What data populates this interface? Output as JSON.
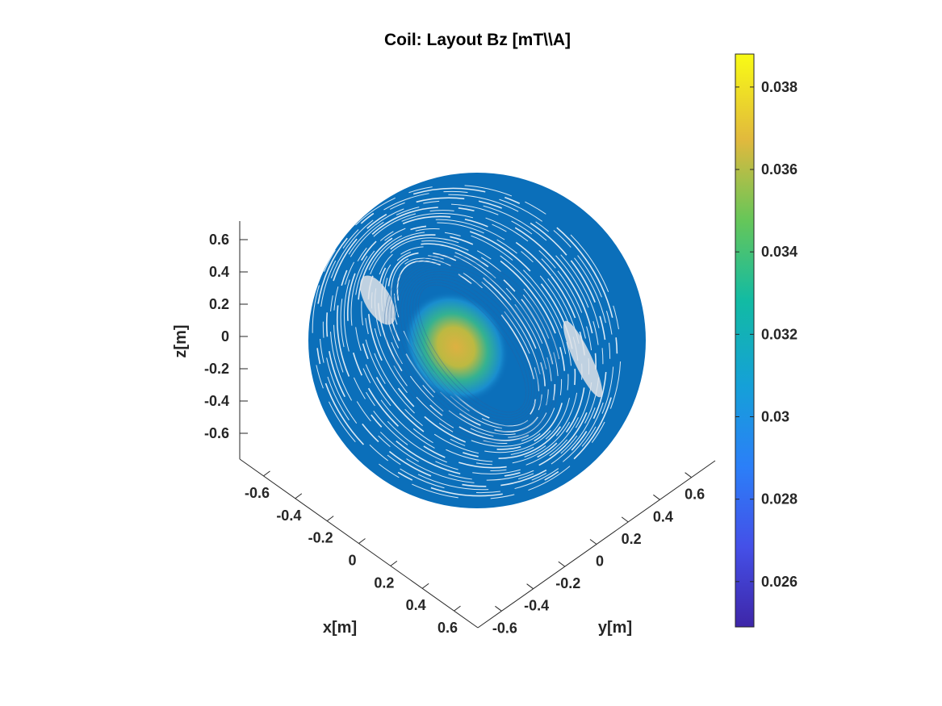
{
  "chart_data": {
    "type": "surface3d",
    "title": "Coil: Layout Bz [mT\\\\A]",
    "xlabel": "x[m]",
    "ylabel": "y[m]",
    "zlabel": "z[m]",
    "x_ticks": [
      "-0.6",
      "-0.4",
      "-0.2",
      "0",
      "0.2",
      "0.4",
      "0.6"
    ],
    "y_ticks": [
      "-0.6",
      "-0.4",
      "-0.2",
      "0",
      "0.2",
      "0.4",
      "0.6"
    ],
    "z_ticks": [
      "0.6",
      "0.4",
      "0.2",
      "0",
      "-0.2",
      "-0.4",
      "-0.6"
    ],
    "xlim": [
      -0.75,
      0.75
    ],
    "ylim": [
      -0.75,
      0.75
    ],
    "zlim": [
      -0.75,
      0.75
    ],
    "colorbar": {
      "ticks": [
        "0.038",
        "0.036",
        "0.034",
        "0.032",
        "0.03",
        "0.028",
        "0.026"
      ],
      "tick_values": [
        0.038,
        0.036,
        0.034,
        0.032,
        0.03,
        0.028,
        0.026
      ],
      "min": 0.0249,
      "max": 0.0388,
      "colormap": "parula"
    },
    "surface": {
      "shape": "sphere",
      "radius": 0.7,
      "base_value": 0.0294,
      "peak_value": 0.036,
      "base_color": "#0b6fba",
      "peak_color": "#e9b53a"
    },
    "grid": false
  }
}
